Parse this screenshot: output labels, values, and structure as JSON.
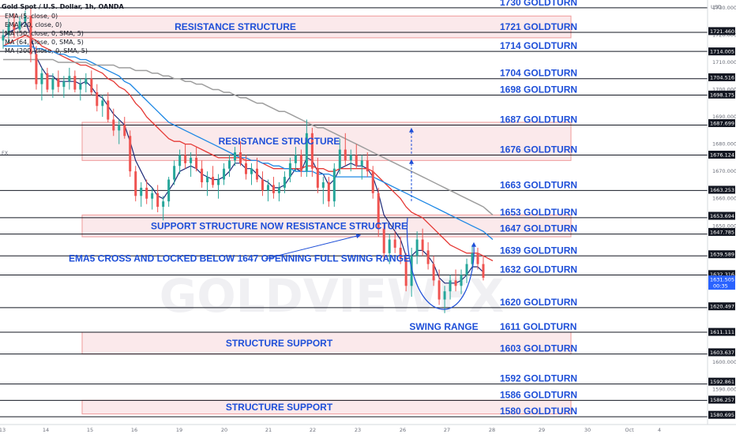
{
  "header": {
    "title": "Gold Spot / U.S. Dollar, 1h, OANDA",
    "indicators": [
      "EMA (5, close, 0)",
      "EMA (20, close, 0)",
      "MA (50, close, 0, SMA, 5)",
      "MA (64, close, 0, SMA, 5)",
      "MA (200, close, 0, SMA, 5)"
    ],
    "currency": "USD",
    "side_label": "FX",
    "watermark": "GOLDVIEWFX",
    "countdown": "00:35"
  },
  "colors": {
    "candle_up": "#26a69a",
    "candle_down": "#ef5350",
    "ema5": "#1e2a78",
    "ema20": "#e53935",
    "ma50": "#1e88e5",
    "ma200": "#9e9e9e",
    "zone_fill": "#f8d7db",
    "zone_border": "#ef9a9a",
    "label": "#1e4fd8",
    "axis_tag": "#131722",
    "current_tag": "#2962ff"
  },
  "chart_data": {
    "type": "candlestick",
    "symbol": "XAUUSD",
    "interval": "1h",
    "ylim": [
      1578,
      1732
    ],
    "x_ticks": [
      "13",
      "14",
      "15",
      "16",
      "19",
      "20",
      "21",
      "22",
      "23",
      "26",
      "27",
      "28",
      "29",
      "30",
      "Oct",
      "4"
    ],
    "y_ticks": [
      1590,
      1600,
      1650,
      1660,
      1670,
      1680,
      1690,
      1700,
      1710,
      1720,
      1730
    ],
    "current_price": 1631.505,
    "price_tags": [
      1721.46,
      1714.005,
      1704.516,
      1698.175,
      1687.699,
      1676.124,
      1663.253,
      1653.694,
      1647.785,
      1639.589,
      1632.316,
      1620.497,
      1611.111,
      1603.637,
      1592.861,
      1586.257,
      1580.695
    ],
    "levels": [
      {
        "price": 1730,
        "label": "1730 GOLDTURN"
      },
      {
        "price": 1721,
        "label": "1721 GOLDTURN"
      },
      {
        "price": 1714,
        "label": "1714 GOLDTURN"
      },
      {
        "price": 1704,
        "label": "1704 GOLDTURN"
      },
      {
        "price": 1698,
        "label": "1698 GOLDTURN"
      },
      {
        "price": 1687,
        "label": "1687 GOLDTURN"
      },
      {
        "price": 1676,
        "label": "1676 GOLDTURN"
      },
      {
        "price": 1663,
        "label": "1663 GOLDTURN"
      },
      {
        "price": 1653,
        "label": "1653 GOLDTURN"
      },
      {
        "price": 1647,
        "label": "1647 GOLDTURN"
      },
      {
        "price": 1639,
        "label": "1639 GOLDTURN"
      },
      {
        "price": 1632,
        "label": "1632 GOLDTURN"
      },
      {
        "price": 1620,
        "label": "1620 GOLDTURN"
      },
      {
        "price": 1611,
        "label": "1611 GOLDTURN"
      },
      {
        "price": 1603,
        "label": "1603 GOLDTURN"
      },
      {
        "price": 1592,
        "label": "1592 GOLDTURN"
      },
      {
        "price": 1586,
        "label": "1586 GOLDTURN"
      },
      {
        "price": 1580,
        "label": "1580 GOLDTURN"
      }
    ],
    "zones": [
      {
        "top": 1727,
        "bottom": 1719,
        "label": "RESISTANCE STRUCTURE",
        "x_from": "13",
        "x_to": "28"
      },
      {
        "top": 1688,
        "bottom": 1674,
        "label": "RESISTANCE STRUCTURE",
        "x_from": "15",
        "x_to": "28"
      },
      {
        "top": 1654,
        "bottom": 1646,
        "label": "SUPPORT STRUCTURE NOW RESISTANCE STRUCTURE",
        "x_from": "15",
        "x_to": "28"
      },
      {
        "top": 1611,
        "bottom": 1603,
        "label": "STRUCTURE SUPPORT",
        "x_from": "15",
        "x_to": "28"
      },
      {
        "top": 1586,
        "bottom": 1581,
        "label": "STRUCTURE SUPPORT",
        "x_from": "15",
        "x_to": "28"
      }
    ],
    "annotations": [
      {
        "text": "EMA5 CROSS AND LOCKED BELOW 1647 OPENNING FULL SWING RANGE",
        "price": 1638,
        "x": "15.5"
      },
      {
        "text": "SWING RANGE",
        "price": 1613,
        "x": "26.9"
      }
    ],
    "candles": [
      [
        1718,
        1722,
        1715,
        1720
      ],
      [
        1720,
        1726,
        1717,
        1724
      ],
      [
        1724,
        1728,
        1719,
        1722
      ],
      [
        1722,
        1727,
        1721,
        1725
      ],
      [
        1725,
        1729,
        1723,
        1727
      ],
      [
        1727,
        1730,
        1710,
        1713
      ],
      [
        1713,
        1716,
        1700,
        1702
      ],
      [
        1702,
        1708,
        1696,
        1706
      ],
      [
        1706,
        1708,
        1699,
        1700
      ],
      [
        1700,
        1706,
        1697,
        1704
      ],
      [
        1704,
        1707,
        1699,
        1701
      ],
      [
        1701,
        1705,
        1697,
        1703
      ],
      [
        1703,
        1708,
        1700,
        1705
      ],
      [
        1705,
        1707,
        1699,
        1700
      ],
      [
        1700,
        1704,
        1696,
        1702
      ],
      [
        1702,
        1706,
        1699,
        1704
      ],
      [
        1704,
        1707,
        1698,
        1699
      ],
      [
        1699,
        1702,
        1692,
        1694
      ],
      [
        1694,
        1698,
        1690,
        1696
      ],
      [
        1696,
        1699,
        1688,
        1689
      ],
      [
        1689,
        1693,
        1683,
        1685
      ],
      [
        1685,
        1689,
        1680,
        1687
      ],
      [
        1687,
        1690,
        1682,
        1683
      ],
      [
        1683,
        1685,
        1668,
        1670
      ],
      [
        1670,
        1672,
        1659,
        1661
      ],
      [
        1661,
        1666,
        1657,
        1664
      ],
      [
        1664,
        1667,
        1658,
        1660
      ],
      [
        1660,
        1664,
        1656,
        1662
      ],
      [
        1662,
        1665,
        1655,
        1657
      ],
      [
        1657,
        1661,
        1652,
        1659
      ],
      [
        1659,
        1668,
        1657,
        1667
      ],
      [
        1667,
        1674,
        1665,
        1672
      ],
      [
        1672,
        1678,
        1669,
        1676
      ],
      [
        1676,
        1680,
        1671,
        1673
      ],
      [
        1673,
        1677,
        1668,
        1675
      ],
      [
        1675,
        1679,
        1670,
        1671
      ],
      [
        1671,
        1674,
        1664,
        1666
      ],
      [
        1666,
        1670,
        1661,
        1668
      ],
      [
        1668,
        1672,
        1664,
        1665
      ],
      [
        1665,
        1669,
        1660,
        1667
      ],
      [
        1667,
        1673,
        1665,
        1671
      ],
      [
        1671,
        1676,
        1668,
        1674
      ],
      [
        1674,
        1679,
        1672,
        1677
      ],
      [
        1677,
        1681,
        1672,
        1673
      ],
      [
        1673,
        1676,
        1667,
        1669
      ],
      [
        1669,
        1673,
        1665,
        1671
      ],
      [
        1671,
        1675,
        1666,
        1667
      ],
      [
        1667,
        1670,
        1661,
        1663
      ],
      [
        1663,
        1667,
        1659,
        1665
      ],
      [
        1665,
        1668,
        1660,
        1662
      ],
      [
        1662,
        1666,
        1659,
        1664
      ],
      [
        1664,
        1670,
        1662,
        1668
      ],
      [
        1668,
        1675,
        1666,
        1673
      ],
      [
        1673,
        1679,
        1670,
        1676
      ],
      [
        1676,
        1678,
        1668,
        1670
      ],
      [
        1670,
        1689,
        1668,
        1684
      ],
      [
        1684,
        1686,
        1668,
        1671
      ],
      [
        1671,
        1675,
        1662,
        1664
      ],
      [
        1664,
        1668,
        1658,
        1666
      ],
      [
        1666,
        1668,
        1657,
        1659
      ],
      [
        1659,
        1673,
        1657,
        1671
      ],
      [
        1671,
        1682,
        1669,
        1678
      ],
      [
        1678,
        1684,
        1672,
        1674
      ],
      [
        1674,
        1678,
        1670,
        1676
      ],
      [
        1676,
        1680,
        1671,
        1672
      ],
      [
        1672,
        1676,
        1667,
        1674
      ],
      [
        1674,
        1677,
        1668,
        1670
      ],
      [
        1670,
        1672,
        1660,
        1662
      ],
      [
        1662,
        1664,
        1646,
        1649
      ],
      [
        1649,
        1651,
        1637,
        1640
      ],
      [
        1640,
        1647,
        1636,
        1645
      ],
      [
        1645,
        1648,
        1640,
        1642
      ],
      [
        1642,
        1646,
        1636,
        1638
      ],
      [
        1638,
        1640,
        1626,
        1628
      ],
      [
        1628,
        1642,
        1624,
        1639
      ],
      [
        1639,
        1648,
        1636,
        1645
      ],
      [
        1645,
        1649,
        1639,
        1641
      ],
      [
        1641,
        1644,
        1634,
        1636
      ],
      [
        1636,
        1639,
        1628,
        1630
      ],
      [
        1630,
        1634,
        1621,
        1623
      ],
      [
        1623,
        1628,
        1618,
        1626
      ],
      [
        1626,
        1632,
        1623,
        1630
      ],
      [
        1630,
        1634,
        1626,
        1628
      ],
      [
        1628,
        1634,
        1625,
        1632
      ],
      [
        1632,
        1638,
        1629,
        1636
      ],
      [
        1636,
        1643,
        1634,
        1640
      ],
      [
        1640,
        1642,
        1634,
        1636
      ],
      [
        1636,
        1639,
        1630,
        1631
      ]
    ],
    "series": [
      {
        "name": "EMA (5, close, 0)",
        "values": [
          1719,
          1721,
          1722,
          1723,
          1725,
          1720,
          1712,
          1708,
          1705,
          1705,
          1703,
          1703,
          1703,
          1703,
          1702,
          1703,
          1701,
          1698,
          1697,
          1694,
          1691,
          1689,
          1687,
          1681,
          1674,
          1670,
          1666,
          1664,
          1661,
          1660,
          1663,
          1666,
          1670,
          1671,
          1672,
          1671,
          1669,
          1668,
          1667,
          1667,
          1668,
          1670,
          1673,
          1673,
          1671,
          1671,
          1669,
          1667,
          1666,
          1664,
          1664,
          1665,
          1668,
          1671,
          1670,
          1675,
          1674,
          1670,
          1669,
          1665,
          1667,
          1671,
          1672,
          1673,
          1672,
          1672,
          1671,
          1668,
          1662,
          1654,
          1651,
          1648,
          1645,
          1639,
          1639,
          1641,
          1641,
          1639,
          1636,
          1631,
          1629,
          1629,
          1629,
          1630,
          1632,
          1635,
          1635,
          1633
        ]
      },
      {
        "name": "EMA (20, close, 0)",
        "values": [
          1716,
          1717,
          1718,
          1719,
          1720,
          1719,
          1718,
          1716,
          1715,
          1714,
          1713,
          1712,
          1711,
          1710,
          1709,
          1709,
          1708,
          1707,
          1706,
          1704,
          1703,
          1701,
          1700,
          1698,
          1695,
          1693,
          1690,
          1688,
          1686,
          1684,
          1682,
          1681,
          1681,
          1680,
          1680,
          1679,
          1678,
          1677,
          1676,
          1675,
          1675,
          1675,
          1675,
          1675,
          1674,
          1674,
          1674,
          1673,
          1672,
          1671,
          1671,
          1671,
          1671,
          1671,
          1671,
          1672,
          1672,
          1671,
          1671,
          1670,
          1670,
          1671,
          1671,
          1671,
          1671,
          1671,
          1671,
          1670,
          1668,
          1666,
          1664,
          1662,
          1660,
          1657,
          1655,
          1654,
          1653,
          1651,
          1649,
          1647,
          1645,
          1643,
          1642,
          1641,
          1640,
          1640,
          1640,
          1639
        ]
      },
      {
        "name": "MA (50, close, 0, SMA, 5)",
        "values": [
          1716,
          1716,
          1716,
          1716,
          1716,
          1716,
          1715,
          1715,
          1714,
          1714,
          1713,
          1713,
          1712,
          1712,
          1711,
          1711,
          1710,
          1709,
          1708,
          1707,
          1706,
          1705,
          1703,
          1702,
          1700,
          1698,
          1696,
          1694,
          1692,
          1690,
          1688,
          1687,
          1686,
          1685,
          1684,
          1683,
          1682,
          1681,
          1680,
          1679,
          1678,
          1677,
          1676,
          1675,
          1675,
          1674,
          1674,
          1673,
          1673,
          1672,
          1672,
          1671,
          1671,
          1670,
          1670,
          1670,
          1670,
          1669,
          1669,
          1669,
          1668,
          1668,
          1668,
          1668,
          1668,
          1668,
          1668,
          1668,
          1667,
          1666,
          1665,
          1664,
          1663,
          1662,
          1661,
          1660,
          1659,
          1658,
          1657,
          1656,
          1655,
          1654,
          1653,
          1652,
          1651,
          1650,
          1649,
          1648
        ]
      },
      {
        "name": "MA (200, close, 0, SMA, 5)",
        "values": [
          1711,
          1711,
          1711,
          1711,
          1711,
          1711,
          1711,
          1711,
          1711,
          1711,
          1710,
          1710,
          1710,
          1710,
          1710,
          1710,
          1709,
          1709,
          1709,
          1709,
          1709,
          1708,
          1708,
          1708,
          1707,
          1707,
          1707,
          1706,
          1706,
          1705,
          1705,
          1704,
          1704,
          1703,
          1703,
          1702,
          1702,
          1701,
          1700,
          1700,
          1699,
          1699,
          1698,
          1697,
          1697,
          1696,
          1695,
          1695,
          1694,
          1693,
          1692,
          1692,
          1691,
          1690,
          1689,
          1688,
          1687,
          1686,
          1686,
          1685,
          1684,
          1683,
          1682,
          1681,
          1680,
          1679,
          1678,
          1677,
          1676,
          1675,
          1674,
          1673,
          1672,
          1671,
          1670,
          1669,
          1668,
          1667,
          1666,
          1665,
          1664,
          1663,
          1662,
          1661,
          1660,
          1659,
          1658,
          1657
        ]
      }
    ]
  }
}
